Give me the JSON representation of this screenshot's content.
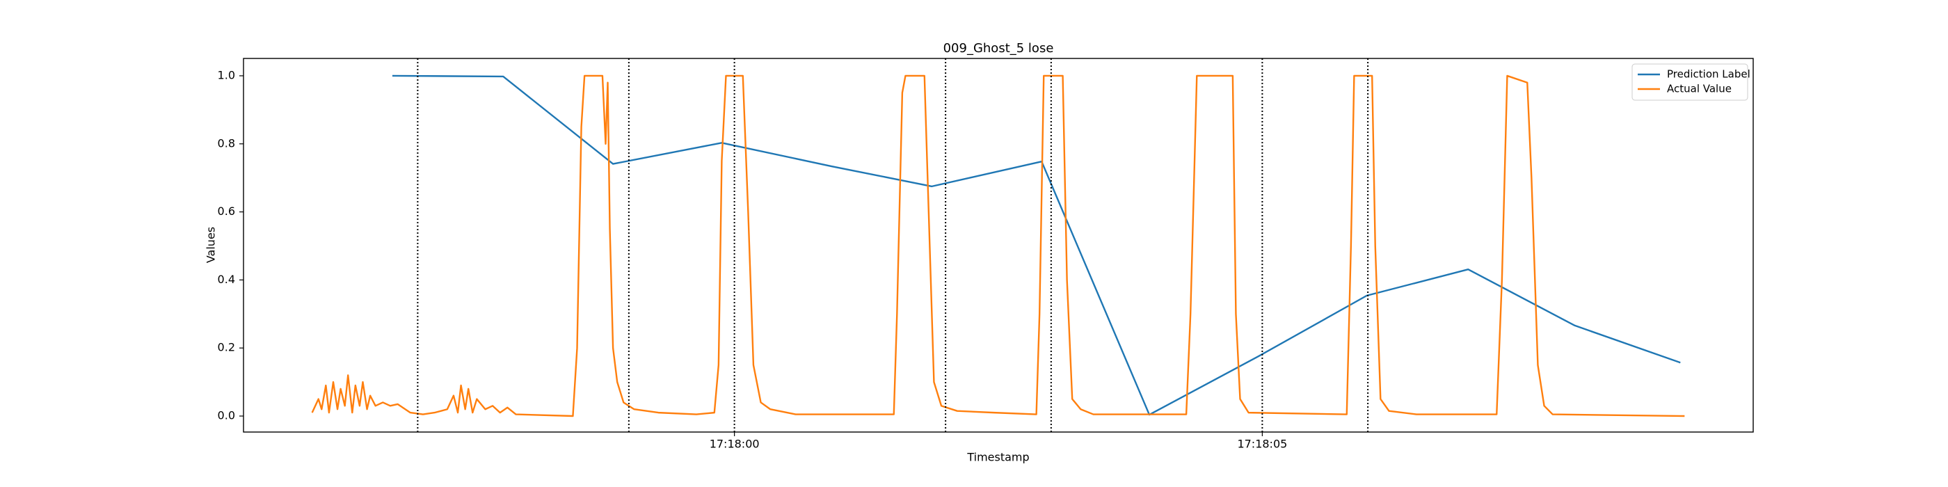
{
  "chart_data": {
    "type": "line",
    "title": "009_Ghost_5 lose",
    "xlabel": "Timestamp",
    "ylabel": "Values",
    "xlim": [
      62275.35,
      62289.65
    ],
    "xticks": [
      {
        "value": 62280,
        "label": "17:18:00"
      },
      {
        "value": 62285,
        "label": "17:18:05"
      }
    ],
    "ylim": [
      -0.047,
      1.051
    ],
    "yticks": [
      {
        "value": 0,
        "label": "0.0"
      },
      0.2,
      0.4,
      0.6,
      0.8,
      {
        "value": 1,
        "label": "1.0"
      }
    ],
    "vlines": [
      62277,
      62279,
      62280,
      62282,
      62283,
      62285,
      62286
    ],
    "legend": "upper right",
    "series": [
      {
        "name": "Prediction Label",
        "color": "#1f77b4",
        "x": [
          62276.76,
          62277.81,
          62278.85,
          62279.88,
          62280.92,
          62281.87,
          62282.91,
          62283.93,
          62284.96,
          62285.99,
          62286.95,
          62287.96,
          62288.96
        ],
        "values": [
          1.0,
          0.998,
          0.741,
          0.803,
          0.734,
          0.675,
          0.748,
          0.004,
          0.175,
          0.354,
          0.431,
          0.266,
          0.157
        ]
      },
      {
        "name": "Actual Value",
        "color": "#ff7f0e",
        "x": [
          62276.0,
          62276.06,
          62276.09,
          62276.13,
          62276.16,
          62276.2,
          62276.24,
          62276.27,
          62276.31,
          62276.34,
          62276.38,
          62276.41,
          62276.45,
          62276.48,
          62276.52,
          62276.55,
          62276.6,
          62276.67,
          62276.74,
          62276.81,
          62276.93,
          62277.05,
          62277.16,
          62277.28,
          62277.34,
          62277.38,
          62277.41,
          62277.45,
          62277.48,
          62277.52,
          62277.56,
          62277.64,
          62277.71,
          62277.78,
          62277.85,
          62277.93,
          62278.47,
          62278.51,
          62278.55,
          62278.58,
          62278.75,
          62278.78,
          62278.8,
          62278.82,
          62278.85,
          62278.89,
          62278.95,
          62279.05,
          62279.28,
          62279.64,
          62279.81,
          62279.85,
          62279.88,
          62279.92,
          62280.08,
          62280.13,
          62280.18,
          62280.25,
          62280.34,
          62280.58,
          62280.93,
          62281.51,
          62281.54,
          62281.59,
          62281.62,
          62281.8,
          62281.85,
          62281.89,
          62281.96,
          62282.11,
          62282.46,
          62282.86,
          62282.89,
          62282.93,
          62283.11,
          62283.15,
          62283.2,
          62283.28,
          62283.4,
          62284.11,
          62284.28,
          62284.32,
          62284.38,
          62284.72,
          62284.75,
          62284.79,
          62284.87,
          62285.8,
          62285.84,
          62285.87,
          62286.04,
          62286.07,
          62286.12,
          62286.2,
          62286.46,
          62287.22,
          62287.27,
          62287.32,
          62287.51,
          62287.55,
          62287.61,
          62287.67,
          62287.75,
          62289.0
        ],
        "values": [
          0.01,
          0.05,
          0.02,
          0.09,
          0.01,
          0.1,
          0.02,
          0.08,
          0.03,
          0.12,
          0.01,
          0.09,
          0.03,
          0.1,
          0.02,
          0.06,
          0.03,
          0.04,
          0.03,
          0.035,
          0.01,
          0.005,
          0.01,
          0.02,
          0.06,
          0.01,
          0.09,
          0.02,
          0.08,
          0.01,
          0.05,
          0.02,
          0.03,
          0.01,
          0.025,
          0.005,
          0.0,
          0.2,
          0.85,
          1.0,
          1.0,
          0.8,
          0.98,
          0.55,
          0.2,
          0.1,
          0.04,
          0.02,
          0.01,
          0.005,
          0.01,
          0.15,
          0.75,
          1.0,
          1.0,
          0.6,
          0.15,
          0.04,
          0.02,
          0.005,
          0.005,
          0.005,
          0.3,
          0.95,
          1.0,
          1.0,
          0.5,
          0.1,
          0.03,
          0.015,
          0.01,
          0.005,
          0.3,
          1.0,
          1.0,
          0.4,
          0.05,
          0.02,
          0.005,
          0.005,
          0.005,
          0.3,
          1.0,
          1.0,
          0.3,
          0.05,
          0.01,
          0.005,
          0.5,
          1.0,
          1.0,
          0.5,
          0.05,
          0.015,
          0.005,
          0.005,
          0.4,
          1.0,
          0.98,
          0.7,
          0.15,
          0.03,
          0.005,
          0.0
        ]
      }
    ]
  }
}
